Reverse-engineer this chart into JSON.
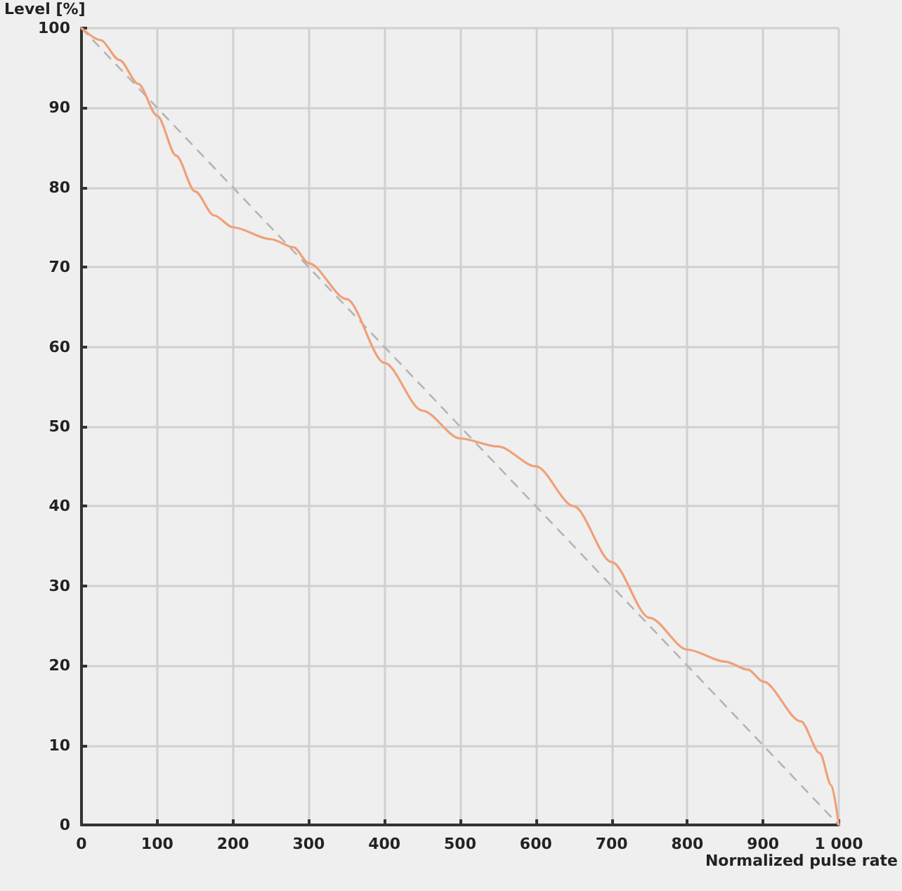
{
  "chart_data": {
    "type": "line",
    "xlabel": "Normalized pulse rate",
    "ylabel": "Level [%]",
    "series": [
      {
        "color": "#f0a078",
        "line_style": "solid",
        "x": [
          0,
          25,
          50,
          75,
          100,
          125,
          150,
          175,
          200,
          250,
          280,
          300,
          350,
          400,
          450,
          500,
          550,
          600,
          650,
          700,
          750,
          800,
          850,
          880,
          900,
          950,
          975,
          990,
          1000
        ],
        "values": [
          100,
          98.5,
          96,
          93,
          89,
          84,
          79.5,
          76.5,
          75,
          73.5,
          72.5,
          70.5,
          66,
          58,
          52,
          48.5,
          47.5,
          45,
          40,
          33,
          26,
          22,
          20.5,
          19.5,
          18,
          13,
          9,
          5,
          0
        ]
      },
      {
        "color": "#b4b4b4",
        "line_style": "dashed",
        "x": [
          0,
          1000
        ],
        "values": [
          100,
          0
        ]
      }
    ],
    "xlim": [
      0,
      1000
    ],
    "xticks": [
      0,
      100,
      200,
      300,
      400,
      500,
      600,
      700,
      800,
      900,
      {
        "value": 1000,
        "label": "1 000"
      }
    ],
    "ylim": [
      0,
      100
    ],
    "yticks": [
      0,
      10,
      20,
      30,
      40,
      50,
      60,
      70,
      80,
      90,
      100
    ],
    "grid": true,
    "marker": "none"
  }
}
